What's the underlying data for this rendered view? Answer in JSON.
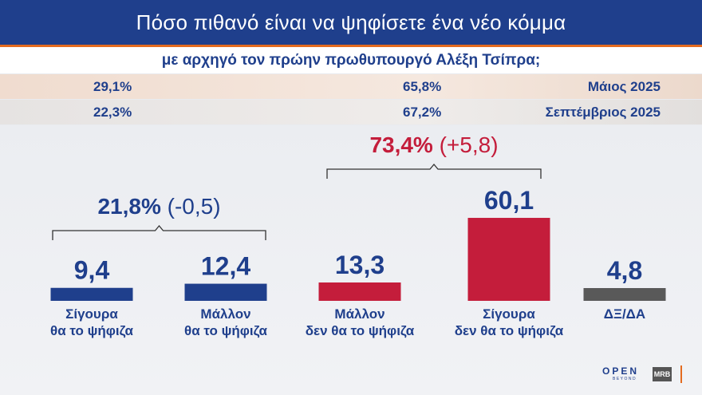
{
  "title": "Πόσο πιθανό είναι να ψηφίσετε ένα νέο κόμμα",
  "subtitle": "με αρχηγό τον πρώην πρωθυπουργό Αλέξη Τσίπρα;",
  "history": [
    {
      "yes": "29,1%",
      "no": "65,8%",
      "period": "Μάιος 2025"
    },
    {
      "yes": "22,3%",
      "no": "67,2%",
      "period": "Σεπτέμβριος 2025"
    }
  ],
  "colors": {
    "positive": "#1f3f8c",
    "negative": "#c41d3b",
    "neutral": "#595959",
    "accent": "#e46b1f"
  },
  "groups": [
    {
      "total": "21,8%",
      "change": "(-0,5)",
      "color": "#1f3f8c"
    },
    {
      "total": "73,4%",
      "change": "(+5,8)",
      "color": "#c41d3b"
    }
  ],
  "chart_data": {
    "type": "bar",
    "categories": [
      [
        "Σίγουρα",
        "θα το ψήφιζα"
      ],
      [
        "Μάλλον",
        "θα το ψήφιζα"
      ],
      [
        "Μάλλον",
        "δεν θα το ψήφιζα"
      ],
      [
        "Σίγουρα",
        "δεν θα το ψήφιζα"
      ],
      [
        "ΔΞ/ΔΑ"
      ]
    ],
    "values": [
      9.4,
      12.4,
      13.3,
      60.1,
      4.8
    ],
    "value_labels": [
      "9,4",
      "12,4",
      "13,3",
      "60,1",
      "4,8"
    ],
    "colors": [
      "#1f3f8c",
      "#1f3f8c",
      "#c41d3b",
      "#c41d3b",
      "#595959"
    ],
    "ylim": [
      0,
      100
    ]
  },
  "logo": {
    "brand": "OPEN",
    "tagline": "BEYOND",
    "pollster": "MRB"
  }
}
